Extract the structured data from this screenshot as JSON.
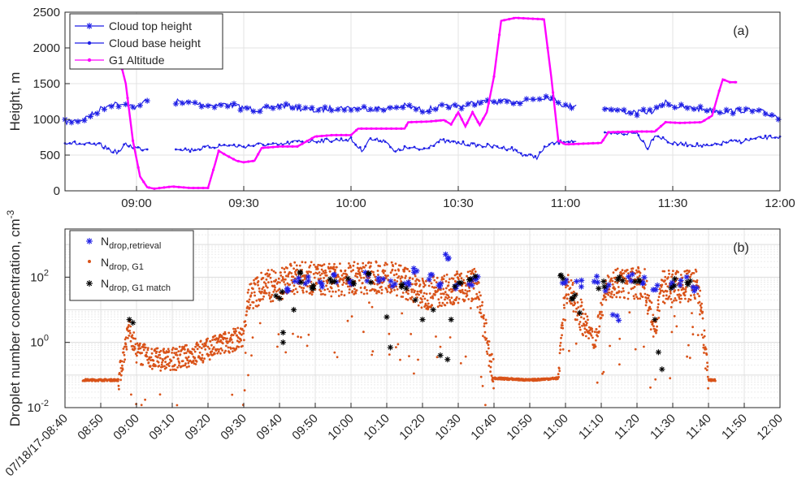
{
  "chart_data": [
    {
      "type": "line",
      "panel_label": "(a)",
      "ylabel": "Height, m",
      "ylim": [
        0,
        2500
      ],
      "yticks": [
        "0",
        "500",
        "1000",
        "1500",
        "2000",
        "2500"
      ],
      "xlim": [
        "08:40",
        "12:00"
      ],
      "xticks": [
        "09:00",
        "09:30",
        "10:00",
        "10:30",
        "11:00",
        "11:30",
        "12:00"
      ],
      "grid": true,
      "legend_position": "top-left",
      "series": [
        {
          "name": "Cloud top height",
          "color": "#1f1fe6",
          "marker": "asterisk",
          "segments": [
            [
              [
                "08:40",
                960
              ],
              [
                "08:45",
                1000
              ],
              [
                "08:48",
                1080
              ],
              [
                "08:50",
                1150
              ],
              [
                "08:52",
                1200
              ],
              [
                "08:54",
                1230
              ],
              [
                "08:56",
                1180
              ],
              [
                "08:58",
                1230
              ],
              [
                "09:00",
                1150
              ],
              [
                "09:02",
                1250
              ],
              [
                "09:03",
                1260
              ]
            ],
            [
              [
                "09:11",
                1250
              ],
              [
                "09:15",
                1230
              ],
              [
                "09:20",
                1200
              ],
              [
                "09:25",
                1210
              ],
              [
                "09:30",
                1160
              ],
              [
                "09:35",
                1130
              ],
              [
                "09:40",
                1200
              ],
              [
                "09:45",
                1160
              ],
              [
                "09:50",
                1120
              ],
              [
                "09:55",
                1160
              ],
              [
                "10:00",
                1160
              ],
              [
                "10:05",
                1150
              ],
              [
                "10:10",
                1150
              ],
              [
                "10:15",
                1190
              ],
              [
                "10:20",
                1130
              ],
              [
                "10:25",
                1170
              ],
              [
                "10:30",
                1180
              ],
              [
                "10:35",
                1230
              ],
              [
                "10:40",
                1250
              ],
              [
                "10:45",
                1240
              ],
              [
                "10:50",
                1280
              ],
              [
                "10:55",
                1320
              ],
              [
                "10:58",
                1250
              ],
              [
                "11:00",
                1180
              ],
              [
                "11:03",
                1200
              ]
            ],
            [
              [
                "11:11",
                1160
              ],
              [
                "11:15",
                1120
              ],
              [
                "11:20",
                1090
              ],
              [
                "11:25",
                1120
              ],
              [
                "11:28",
                1240
              ],
              [
                "11:31",
                1180
              ],
              [
                "11:35",
                1160
              ],
              [
                "11:40",
                1130
              ],
              [
                "11:45",
                1110
              ],
              [
                "11:50",
                1130
              ],
              [
                "11:55",
                1100
              ],
              [
                "12:00",
                1030
              ]
            ]
          ]
        },
        {
          "name": "Cloud base height",
          "color": "#1f1fe6",
          "marker": "dot",
          "segments": [
            [
              [
                "08:40",
                680
              ],
              [
                "08:45",
                650
              ],
              [
                "08:50",
                640
              ],
              [
                "08:53",
                560
              ],
              [
                "08:55",
                540
              ],
              [
                "08:57",
                650
              ],
              [
                "09:00",
                600
              ],
              [
                "09:03",
                580
              ]
            ],
            [
              [
                "09:11",
                600
              ],
              [
                "09:15",
                570
              ],
              [
                "09:20",
                610
              ],
              [
                "09:25",
                640
              ],
              [
                "09:30",
                620
              ],
              [
                "09:35",
                650
              ],
              [
                "09:40",
                640
              ],
              [
                "09:45",
                690
              ],
              [
                "09:50",
                700
              ],
              [
                "09:55",
                710
              ],
              [
                "10:00",
                720
              ],
              [
                "10:03",
                560
              ],
              [
                "10:05",
                720
              ],
              [
                "10:10",
                700
              ],
              [
                "10:12",
                540
              ],
              [
                "10:15",
                600
              ],
              [
                "10:20",
                580
              ],
              [
                "10:25",
                700
              ],
              [
                "10:30",
                670
              ],
              [
                "10:35",
                640
              ],
              [
                "10:40",
                620
              ],
              [
                "10:45",
                590
              ],
              [
                "10:48",
                510
              ],
              [
                "10:52",
                470
              ],
              [
                "10:55",
                640
              ],
              [
                "11:00",
                700
              ],
              [
                "11:03",
                690
              ]
            ],
            [
              [
                "11:11",
                790
              ],
              [
                "11:15",
                800
              ],
              [
                "11:20",
                810
              ],
              [
                "11:23",
                600
              ],
              [
                "11:25",
                790
              ],
              [
                "11:30",
                660
              ],
              [
                "11:35",
                650
              ],
              [
                "11:40",
                620
              ],
              [
                "11:45",
                680
              ],
              [
                "11:50",
                700
              ],
              [
                "11:55",
                740
              ],
              [
                "12:00",
                760
              ]
            ]
          ]
        },
        {
          "name": "G1 Altitude",
          "color": "#ff00ff",
          "marker": "dot",
          "segments": [
            [
              [
                "08:56",
                1700
              ],
              [
                "08:57",
                1500
              ],
              [
                "08:59",
                700
              ],
              [
                "09:01",
                200
              ],
              [
                "09:03",
                50
              ],
              [
                "09:05",
                30
              ],
              [
                "09:10",
                60
              ],
              [
                "09:15",
                40
              ],
              [
                "09:20",
                40
              ],
              [
                "09:22",
                380
              ],
              [
                "09:23",
                560
              ],
              [
                "09:25",
                500
              ],
              [
                "09:28",
                420
              ],
              [
                "09:30",
                400
              ],
              [
                "09:33",
                420
              ],
              [
                "09:35",
                600
              ],
              [
                "09:40",
                620
              ],
              [
                "09:45",
                620
              ],
              [
                "09:50",
                760
              ],
              [
                "09:55",
                780
              ],
              [
                "10:00",
                780
              ],
              [
                "10:02",
                870
              ],
              [
                "10:08",
                870
              ],
              [
                "10:15",
                870
              ],
              [
                "10:16",
                960
              ],
              [
                "10:22",
                970
              ],
              [
                "10:26",
                990
              ],
              [
                "10:28",
                930
              ],
              [
                "10:30",
                1100
              ],
              [
                "10:32",
                900
              ],
              [
                "10:34",
                1100
              ],
              [
                "10:36",
                920
              ],
              [
                "10:38",
                1100
              ],
              [
                "10:40",
                1600
              ],
              [
                "10:42",
                2380
              ],
              [
                "10:46",
                2420
              ],
              [
                "10:50",
                2410
              ],
              [
                "10:54",
                2400
              ],
              [
                "10:56",
                1600
              ],
              [
                "10:58",
                700
              ],
              [
                "11:00",
                650
              ],
              [
                "11:05",
                660
              ],
              [
                "11:10",
                670
              ],
              [
                "11:12",
                820
              ],
              [
                "11:20",
                830
              ],
              [
                "11:25",
                830
              ],
              [
                "11:28",
                960
              ],
              [
                "11:32",
                950
              ],
              [
                "11:38",
                960
              ],
              [
                "11:41",
                1050
              ],
              [
                "11:43",
                1400
              ],
              [
                "11:44",
                1560
              ],
              [
                "11:46",
                1520
              ],
              [
                "11:48",
                1520
              ]
            ]
          ]
        }
      ]
    },
    {
      "type": "scatter",
      "panel_label": "(b)",
      "ylabel": "Droplet number concentration, cm",
      "ylabel_superscript": "-3",
      "yscale": "log",
      "ylim": [
        0.01,
        3000
      ],
      "yticks": [
        {
          "base": "10",
          "exp": "-2"
        },
        {
          "base": "10",
          "exp": "0"
        },
        {
          "base": "10",
          "exp": "2"
        }
      ],
      "xlim": [
        "08:40",
        "12:00"
      ],
      "xticks": [
        "07/18/17-08:40",
        "08:50",
        "09:00",
        "09:10",
        "09:20",
        "09:30",
        "09:40",
        "09:50",
        "10:00",
        "10:10",
        "10:20",
        "10:30",
        "10:40",
        "10:50",
        "11:00",
        "11:10",
        "11:20",
        "11:30",
        "11:40",
        "11:50",
        "12:00"
      ],
      "grid": true,
      "legend_position": "top-left",
      "legend": [
        {
          "base": "N",
          "sub": "drop,retrieval",
          "color": "#1f1fe6",
          "marker": "asterisk"
        },
        {
          "base": "N",
          "sub": "drop, G1",
          "color": "#d95319",
          "marker": "dot"
        },
        {
          "base": "N",
          "sub": "drop, G1 match",
          "color": "#000000",
          "marker": "asterisk"
        }
      ],
      "g1_profile": [
        [
          "08:45",
          0.07
        ],
        [
          "08:55",
          0.07
        ],
        [
          "08:58",
          3
        ],
        [
          "09:00",
          0.5
        ],
        [
          "09:05",
          0.3
        ],
        [
          "09:10",
          0.3
        ],
        [
          "09:15",
          0.4
        ],
        [
          "09:20",
          0.6
        ],
        [
          "09:25",
          1
        ],
        [
          "09:30",
          1.5
        ],
        [
          "09:31",
          20
        ],
        [
          "09:35",
          50
        ],
        [
          "09:40",
          60
        ],
        [
          "09:45",
          100
        ],
        [
          "09:50",
          90
        ],
        [
          "09:55",
          80
        ],
        [
          "10:00",
          90
        ],
        [
          "10:05",
          100
        ],
        [
          "10:10",
          100
        ],
        [
          "10:15",
          70
        ],
        [
          "10:20",
          30
        ],
        [
          "10:25",
          40
        ],
        [
          "10:30",
          50
        ],
        [
          "10:35",
          60
        ],
        [
          "10:40",
          0.08
        ],
        [
          "10:50",
          0.07
        ],
        [
          "10:58",
          0.08
        ],
        [
          "11:00",
          60
        ],
        [
          "11:05",
          5
        ],
        [
          "11:08",
          1
        ],
        [
          "11:12",
          80
        ],
        [
          "11:18",
          60
        ],
        [
          "11:22",
          70
        ],
        [
          "11:25",
          2
        ],
        [
          "11:27",
          50
        ],
        [
          "11:33",
          50
        ],
        [
          "11:37",
          60
        ],
        [
          "11:40",
          0.07
        ],
        [
          "11:42",
          0.07
        ]
      ],
      "retrieval_points": [
        [
          "09:42",
          50
        ],
        [
          "09:45",
          100
        ],
        [
          "09:48",
          80
        ],
        [
          "09:52",
          60
        ],
        [
          "09:56",
          90
        ],
        [
          "10:00",
          70
        ],
        [
          "10:04",
          100
        ],
        [
          "10:08",
          90
        ],
        [
          "10:12",
          60
        ],
        [
          "10:16",
          80
        ],
        [
          "10:18",
          150
        ],
        [
          "10:22",
          120
        ],
        [
          "10:25",
          60
        ],
        [
          "10:27",
          400
        ],
        [
          "10:30",
          50
        ],
        [
          "10:33",
          60
        ],
        [
          "10:35",
          90
        ],
        [
          "11:00",
          60
        ],
        [
          "11:04",
          70
        ],
        [
          "11:08",
          90
        ],
        [
          "11:12",
          50
        ],
        [
          "11:14",
          5
        ],
        [
          "11:18",
          100
        ],
        [
          "11:22",
          70
        ],
        [
          "11:25",
          40
        ],
        [
          "11:29",
          60
        ],
        [
          "11:33",
          80
        ],
        [
          "11:36",
          50
        ]
      ],
      "match_points": [
        [
          "08:58",
          5
        ],
        [
          "08:59",
          4
        ],
        [
          "09:40",
          30
        ],
        [
          "09:41",
          2
        ],
        [
          "09:41",
          1
        ],
        [
          "09:44",
          10
        ],
        [
          "09:46",
          100
        ],
        [
          "09:50",
          60
        ],
        [
          "09:55",
          90
        ],
        [
          "10:00",
          80
        ],
        [
          "10:05",
          100
        ],
        [
          "10:10",
          6
        ],
        [
          "10:11",
          0.7
        ],
        [
          "10:15",
          60
        ],
        [
          "10:18",
          20
        ],
        [
          "10:20",
          5
        ],
        [
          "10:23",
          10
        ],
        [
          "10:25",
          0.4
        ],
        [
          "10:27",
          0.3
        ],
        [
          "10:28",
          5
        ],
        [
          "10:30",
          60
        ],
        [
          "10:34",
          80
        ],
        [
          "10:59",
          80
        ],
        [
          "11:02",
          30
        ],
        [
          "11:04",
          8
        ],
        [
          "11:10",
          60
        ],
        [
          "11:15",
          80
        ],
        [
          "11:20",
          70
        ],
        [
          "11:25",
          5
        ],
        [
          "11:26",
          0.5
        ],
        [
          "11:27",
          0.15
        ],
        [
          "11:30",
          60
        ],
        [
          "11:35",
          70
        ]
      ]
    }
  ]
}
